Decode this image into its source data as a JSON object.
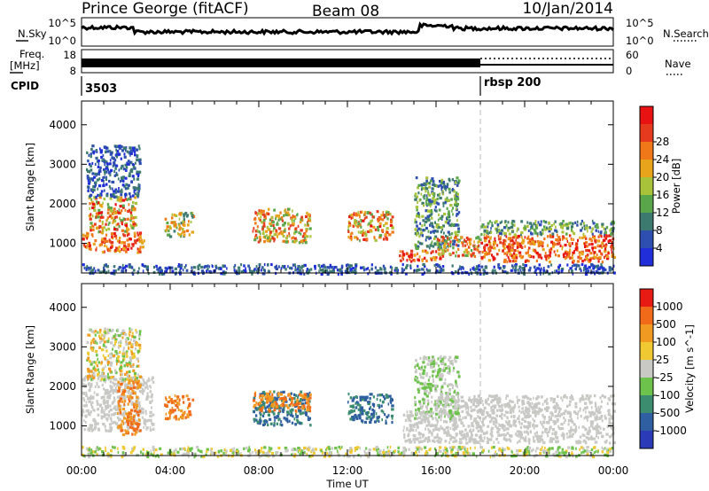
{
  "header": {
    "station": "Prince George (fitACF)",
    "beam": "Beam 08",
    "date": "10/Jan/2014"
  },
  "noise_panel": {
    "left_label": "N.Sky",
    "right_label": "N.Search",
    "left_ticks": [
      "10^5",
      "10^0"
    ],
    "right_ticks": [
      "10^5",
      "10^0"
    ]
  },
  "freq_panel": {
    "left_label_top": "Freq.",
    "left_label_bottom": "[MHz]",
    "right_label": "Nave",
    "left_ticks": [
      "18",
      "8"
    ],
    "right_ticks": [
      "60",
      "0"
    ]
  },
  "cpid_panel": {
    "label": "CPID",
    "modes": [
      {
        "name": "3503",
        "start_hour": 0
      },
      {
        "name": "rbsp 200",
        "start_hour": 18
      }
    ]
  },
  "chart_data": [
    {
      "type": "heatmap",
      "title": "Power",
      "xlabel": "",
      "ylabel": "Slant Range [km]",
      "xlim": [
        0,
        24
      ],
      "ylim": [
        250,
        4600
      ],
      "x_tick_labels": [
        "00:00",
        "04:00",
        "08:00",
        "12:00",
        "16:00",
        "20:00",
        "00:00"
      ],
      "y_ticks": [
        1000,
        2000,
        3000,
        4000
      ],
      "colorbar": {
        "label": "Power [dB]",
        "ticks": [
          "4",
          "8",
          "12",
          "16",
          "20",
          "24",
          "28"
        ],
        "colors": [
          "#1f2ed8",
          "#2e4fb0",
          "#3c7a70",
          "#5aa64a",
          "#a8c23a",
          "#e8a41a",
          "#f07818",
          "#e63a1e",
          "#e81212"
        ]
      },
      "scatter_regions": [
        {
          "t": [
            0.0,
            2.8
          ],
          "r": [
            800,
            1300
          ],
          "level": [
            5,
            8
          ]
        },
        {
          "t": [
            0.3,
            2.4
          ],
          "r": [
            1300,
            2200
          ],
          "level": [
            3,
            8
          ]
        },
        {
          "t": [
            0.2,
            2.6
          ],
          "r": [
            2200,
            3500
          ],
          "level": [
            0,
            2
          ]
        },
        {
          "t": [
            3.7,
            5.0
          ],
          "r": [
            1200,
            1800
          ],
          "level": [
            2,
            6
          ]
        },
        {
          "t": [
            7.7,
            10.3
          ],
          "r": [
            1050,
            1900
          ],
          "level": [
            3,
            7
          ]
        },
        {
          "t": [
            12.0,
            14.0
          ],
          "r": [
            1100,
            1850
          ],
          "level": [
            3,
            8
          ]
        },
        {
          "t": [
            14.3,
            16.2
          ],
          "r": [
            570,
            850
          ],
          "level": [
            5,
            8
          ]
        },
        {
          "t": [
            15.0,
            17.0
          ],
          "r": [
            900,
            2700
          ],
          "level": [
            1,
            4
          ]
        },
        {
          "t": [
            16.0,
            18.0
          ],
          "r": [
            700,
            1200
          ],
          "level": [
            3,
            7
          ]
        },
        {
          "t": [
            18.0,
            24.0
          ],
          "r": [
            550,
            1250
          ],
          "level": [
            5,
            8
          ]
        },
        {
          "t": [
            18.0,
            24.0
          ],
          "r": [
            1250,
            1600
          ],
          "level": [
            1,
            4
          ]
        },
        {
          "t": [
            0.0,
            24.0
          ],
          "r": [
            250,
            500
          ],
          "level": [
            0,
            2
          ]
        }
      ]
    },
    {
      "type": "heatmap",
      "title": "Velocity",
      "xlabel": "Time UT",
      "ylabel": "Slant Range [km]",
      "xlim": [
        0,
        24
      ],
      "ylim": [
        250,
        4600
      ],
      "x_tick_labels": [
        "00:00",
        "04:00",
        "08:00",
        "12:00",
        "16:00",
        "20:00",
        "00:00"
      ],
      "y_ticks": [
        1000,
        2000,
        3000,
        4000
      ],
      "colorbar": {
        "label": "Velocity [m s^-1]",
        "ticks": [
          "1000",
          "500",
          "100",
          "25",
          "-25",
          "-100",
          "-500",
          "-1000"
        ],
        "colors": [
          "#2b3bb8",
          "#2f5fa0",
          "#3c8c70",
          "#6cc24a",
          "#c8c8c4",
          "#f0c832",
          "#f09a22",
          "#f06a1a",
          "#e81a14"
        ]
      },
      "scatter_regions": [
        {
          "t": [
            0.0,
            3.2
          ],
          "r": [
            900,
            2300
          ],
          "level": [
            4,
            4
          ]
        },
        {
          "t": [
            1.6,
            2.6
          ],
          "r": [
            800,
            2200
          ],
          "level": [
            6,
            7
          ]
        },
        {
          "t": [
            0.2,
            2.6
          ],
          "r": [
            2200,
            3500
          ],
          "level": [
            3,
            6
          ]
        },
        {
          "t": [
            3.7,
            5.0
          ],
          "r": [
            1200,
            1800
          ],
          "level": [
            6,
            7
          ]
        },
        {
          "t": [
            7.7,
            10.3
          ],
          "r": [
            1050,
            1900
          ],
          "level": [
            1,
            2
          ]
        },
        {
          "t": [
            7.7,
            10.3
          ],
          "r": [
            1400,
            1900
          ],
          "level": [
            6,
            7
          ]
        },
        {
          "t": [
            12.0,
            14.0
          ],
          "r": [
            1100,
            1850
          ],
          "level": [
            1,
            2
          ]
        },
        {
          "t": [
            14.5,
            24.0
          ],
          "r": [
            600,
            1400
          ],
          "level": [
            4,
            4
          ]
        },
        {
          "t": [
            15.0,
            17.0
          ],
          "r": [
            1200,
            2800
          ],
          "level": [
            3,
            4
          ]
        },
        {
          "t": [
            16.0,
            24.0
          ],
          "r": [
            1400,
            1800
          ],
          "level": [
            4,
            4
          ]
        },
        {
          "t": [
            0.0,
            24.0
          ],
          "r": [
            250,
            500
          ],
          "level": [
            3,
            5
          ]
        }
      ]
    }
  ]
}
